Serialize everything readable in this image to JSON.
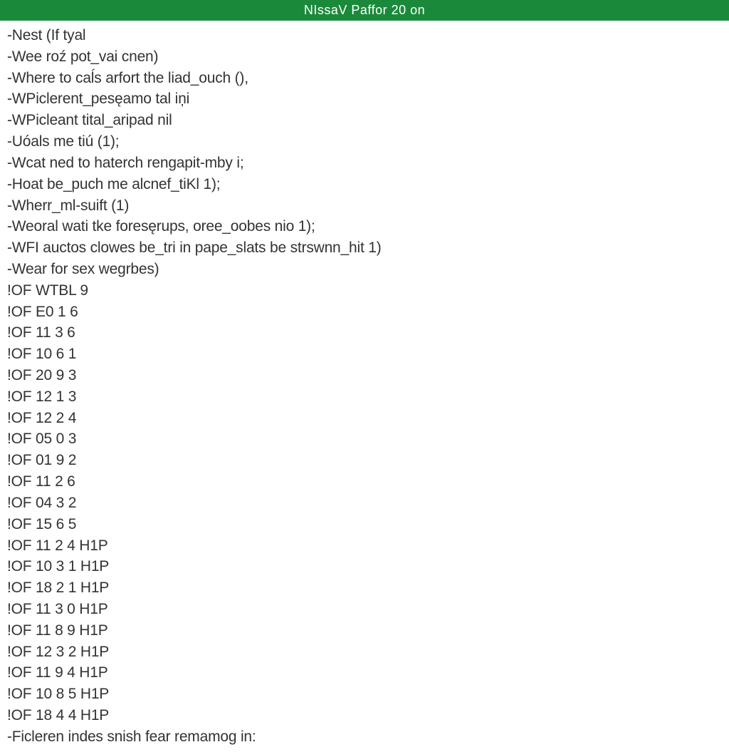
{
  "header": {
    "title": "NIssaV Paffor 20 on",
    "background_color": "#1a8a3a",
    "text_color": "#ffffff"
  },
  "lines": [
    "-Nest (If tyal",
    "-Wee roź pot_vai cnen)",
    "-Where to caĺs arfort the liad_ouch (),",
    "-WPiclerent_pesęamo tal iņi",
    "-WPicleant tital_aripad nil",
    "-Uóals me tiú (1);",
    "-Wcat ned to haterch rengapit-mby i;",
    "-Hoat be_puch me alcnef_tiKl 1);",
    "-Wherr_ml-suift (1)",
    "-Weoral wati tke foresęrups, oree_oobes nio 1);",
    "-WFI auctos clowes be_tri in pape_slats be strswnn_hit 1)",
    "-Wear for sex wegrbes)",
    "!OF WTBL 9",
    "!OF E0 1 6",
    "!OF 11 3 6",
    "!OF 10 6 1",
    "!OF 20 9 3",
    "!OF 12 1 3",
    "!OF 12 2 4",
    "!OF 05 0 3",
    "!OF 01 9 2",
    "!OF 11 2 6",
    "!OF 04 3 2",
    "!OF 15 6 5",
    "!OF 11 2 4 H1P",
    "!OF 10 3 1 H1P",
    "!OF 18 2 1 H1P",
    "!OF 11 3 0 H1P",
    "!OF 11 8 9 H1P",
    "!OF 12 3 2 H1P",
    "!OF 11 9 4 H1P",
    "!OF 10 8 5 H1P",
    "!OF 18 4 4 H1P",
    "-Ficleren indes snish fear remamog in:"
  ],
  "styles": {
    "background_color": "#ffffff",
    "text_color": "#333333",
    "font_size": 21,
    "line_height": 1.42
  }
}
